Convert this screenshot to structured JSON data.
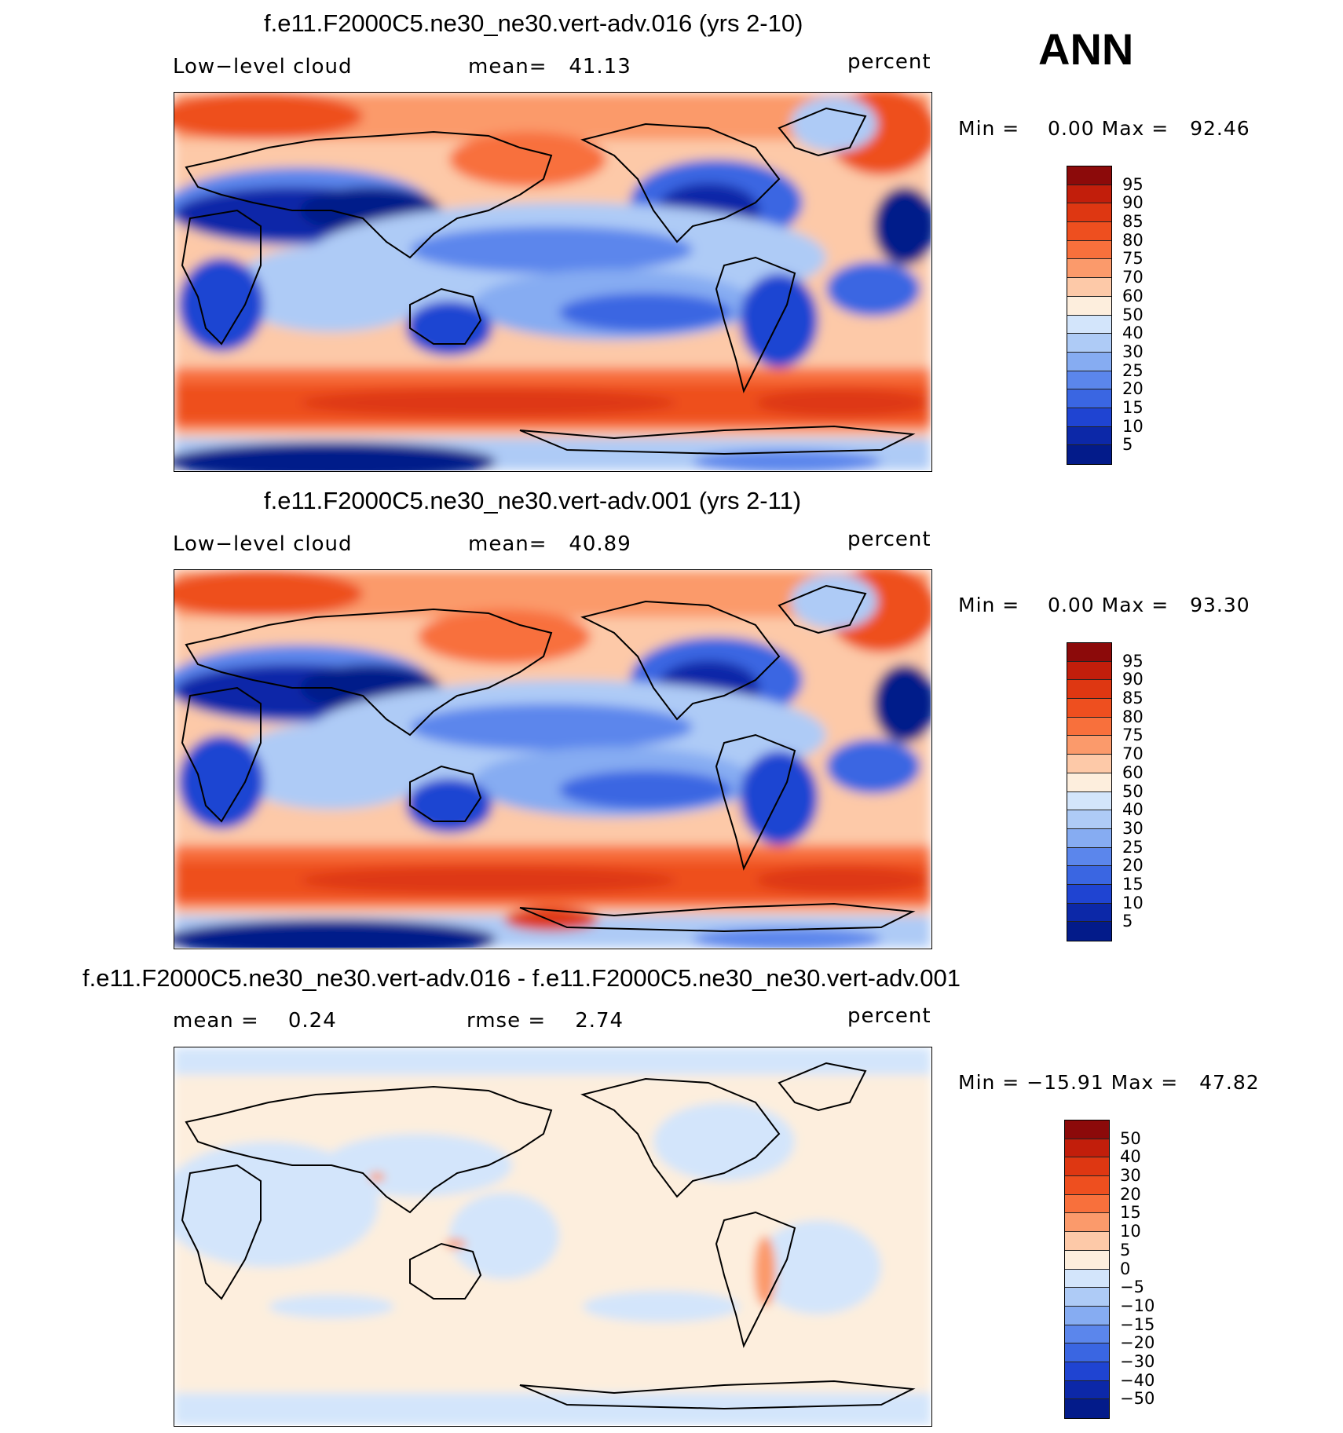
{
  "season": "ANN",
  "panels": [
    {
      "title": "f.e11.F2000C5.ne30_ne30.vert-adv.016 (yrs 2-10)",
      "left_label": "Low−level cloud",
      "center_label": "mean=   41.13",
      "units": "percent",
      "minmax": "Min =    0.00 Max =   92.46",
      "stats": {
        "mean": 41.13,
        "min": 0.0,
        "max": 92.46
      },
      "colorbar": {
        "labels": [
          "95",
          "90",
          "85",
          "80",
          "75",
          "70",
          "60",
          "50",
          "40",
          "30",
          "25",
          "20",
          "15",
          "10",
          "5"
        ],
        "colors": [
          "#8c0a0a",
          "#c21e0b",
          "#de3712",
          "#ee4f1f",
          "#f8703c",
          "#fb9a6b",
          "#fdc9a8",
          "#fdeedd",
          "#d3e5fb",
          "#aecbf6",
          "#86acf2",
          "#5b86ec",
          "#3a66e2",
          "#1f44d2",
          "#0c28a8",
          "#031b8a"
        ]
      }
    },
    {
      "title": "f.e11.F2000C5.ne30_ne30.vert-adv.001 (yrs 2-11)",
      "left_label": "Low−level cloud",
      "center_label": "mean=   40.89",
      "units": "percent",
      "minmax": "Min =    0.00 Max =   93.30",
      "stats": {
        "mean": 40.89,
        "min": 0.0,
        "max": 93.3
      },
      "colorbar": {
        "labels": [
          "95",
          "90",
          "85",
          "80",
          "75",
          "70",
          "60",
          "50",
          "40",
          "30",
          "25",
          "20",
          "15",
          "10",
          "5"
        ],
        "colors": [
          "#8c0a0a",
          "#c21e0b",
          "#de3712",
          "#ee4f1f",
          "#f8703c",
          "#fb9a6b",
          "#fdc9a8",
          "#fdeedd",
          "#d3e5fb",
          "#aecbf6",
          "#86acf2",
          "#5b86ec",
          "#3a66e2",
          "#1f44d2",
          "#0c28a8",
          "#031b8a"
        ]
      }
    },
    {
      "title": "f.e11.F2000C5.ne30_ne30.vert-adv.016 - f.e11.F2000C5.ne30_ne30.vert-adv.001",
      "left_label": "mean =    0.24",
      "center_label": "rmse =    2.74",
      "units": "percent",
      "minmax": "Min = −15.91 Max =   47.82",
      "stats": {
        "mean": 0.24,
        "rmse": 2.74,
        "min": -15.91,
        "max": 47.82
      },
      "colorbar": {
        "labels": [
          "50",
          "40",
          "30",
          "20",
          "15",
          "10",
          "5",
          "0",
          "−5",
          "−10",
          "−15",
          "−20",
          "−30",
          "−40",
          "−50"
        ],
        "colors": [
          "#8c0a0a",
          "#c21e0b",
          "#de3712",
          "#ee4f1f",
          "#f8703c",
          "#fb9a6b",
          "#fdc9a8",
          "#fdeedd",
          "#d3e5fb",
          "#aecbf6",
          "#86acf2",
          "#5b86ec",
          "#3a66e2",
          "#1f44d2",
          "#0c28a8",
          "#031b8a"
        ]
      }
    }
  ]
}
